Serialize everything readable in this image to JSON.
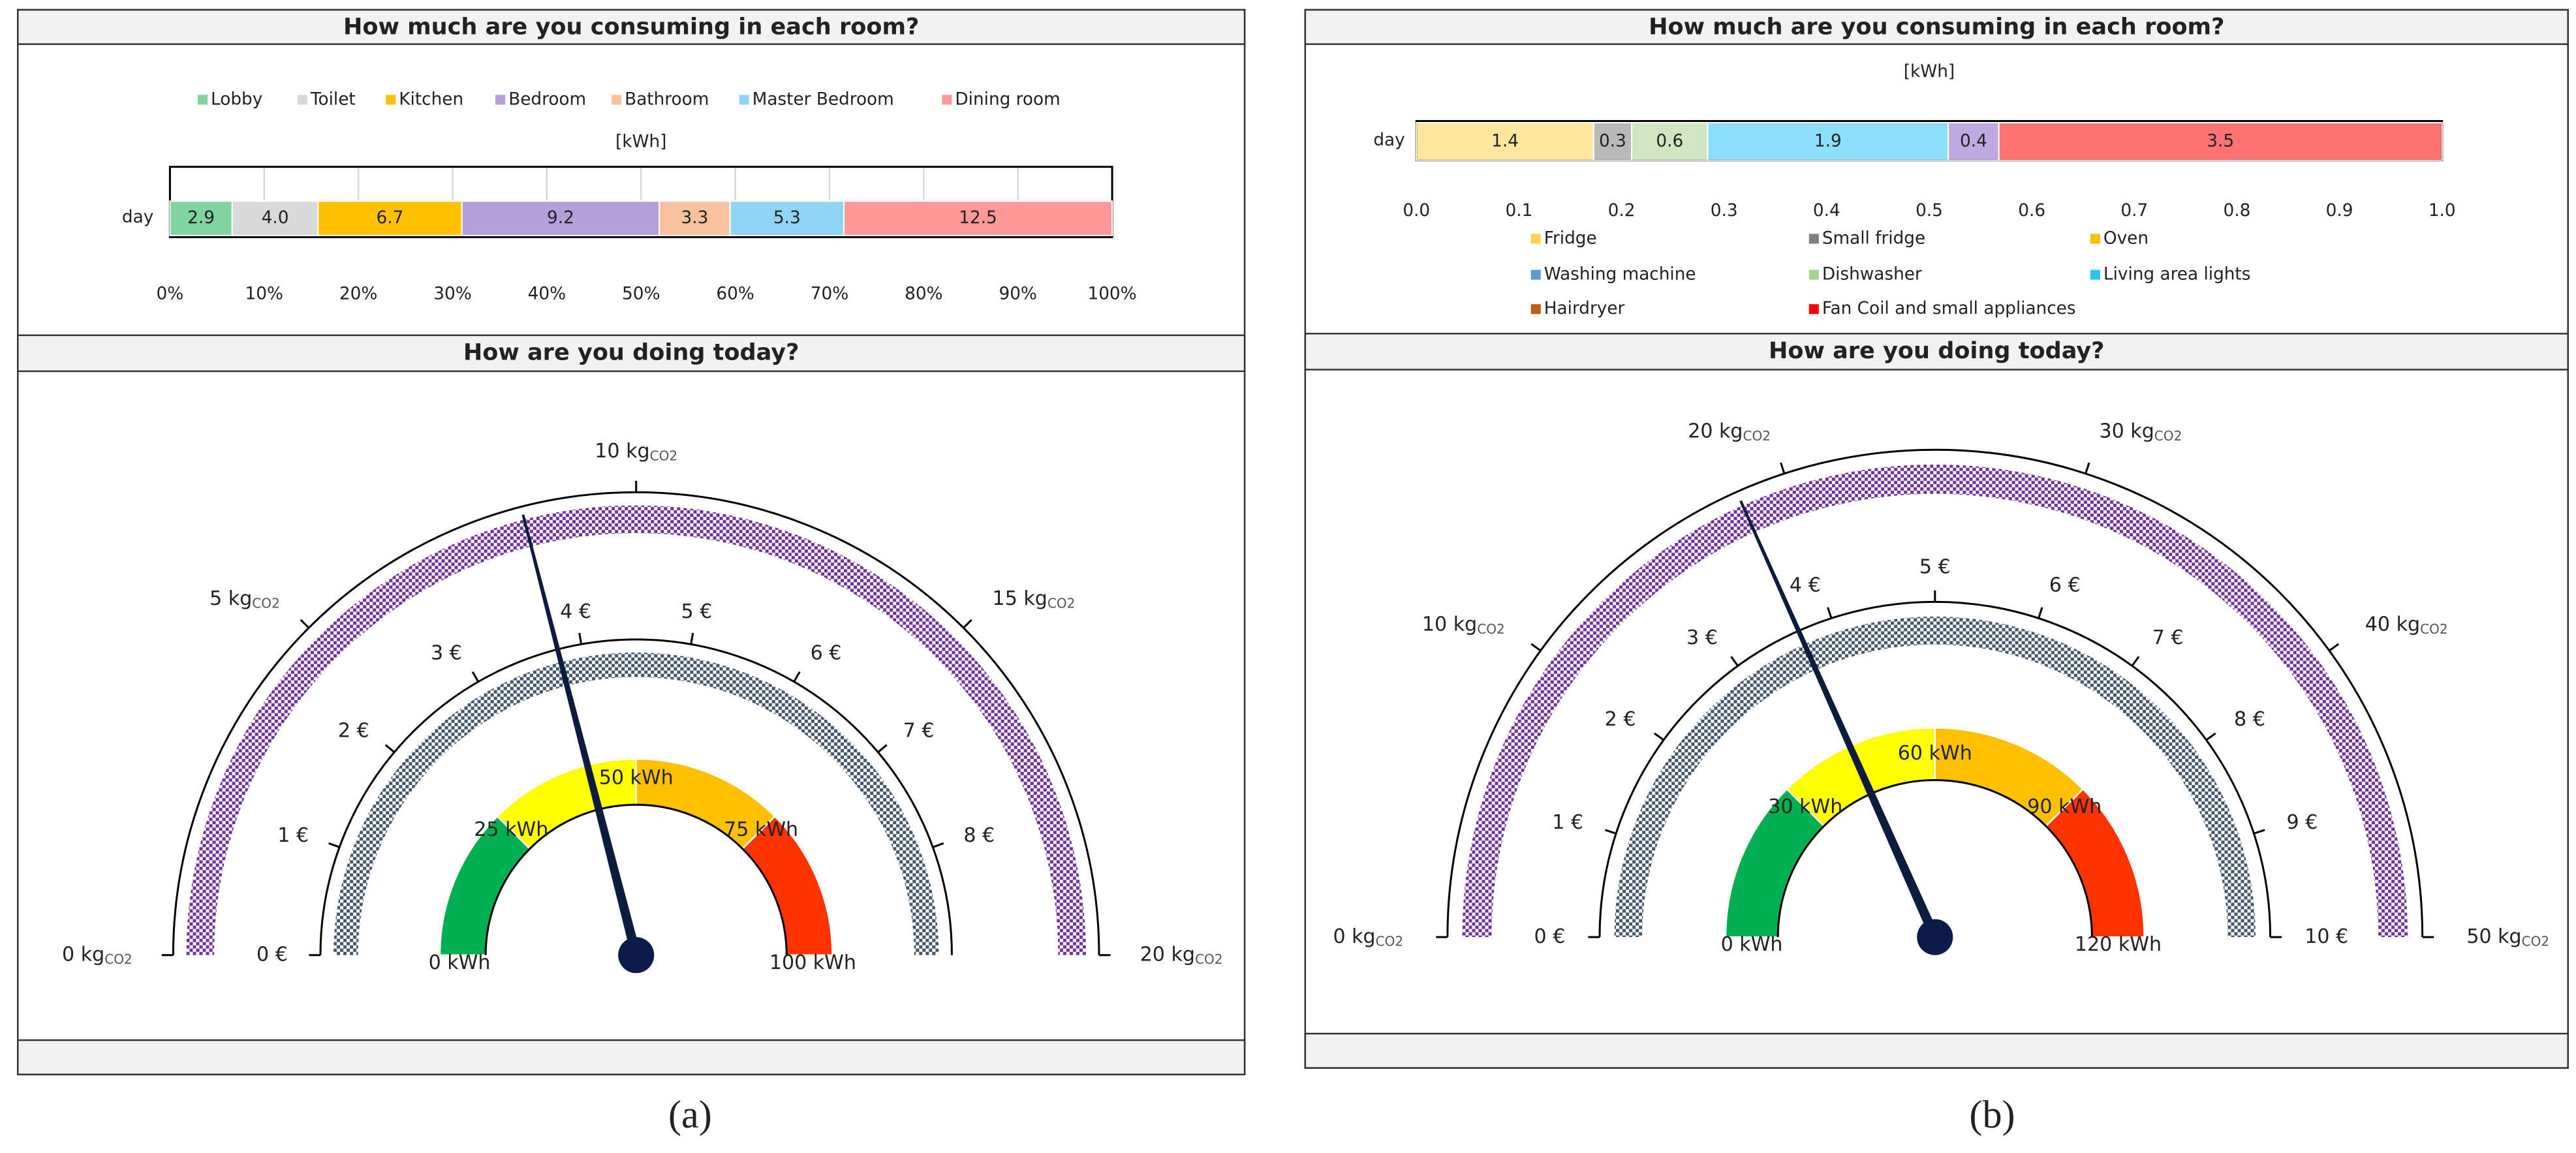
{
  "chart_data": [
    {
      "type": "bar",
      "stacked": true,
      "normalized": true,
      "title": "How much are you consuming in each room?",
      "axis_label": "[kWh]",
      "categories": [
        "day"
      ],
      "series": [
        {
          "name": "Lobby",
          "color": "#7fd4a0",
          "values": [
            2.9
          ]
        },
        {
          "name": "Toilet",
          "color": "#d9d9d9",
          "values": [
            4.0
          ],
          "value_labels": [
            "4.0"
          ]
        },
        {
          "name": "Kitchen",
          "color": "#ffc000",
          "values": [
            6.7
          ]
        },
        {
          "name": "Bedroom",
          "color": "#b59fd9",
          "values": [
            9.2
          ]
        },
        {
          "name": "Bathroom",
          "color": "#f8c29d",
          "values": [
            3.3
          ]
        },
        {
          "name": "Master Bedroom",
          "color": "#8fd4f5",
          "values": [
            5.3
          ]
        },
        {
          "name": "Dining room",
          "color": "#ff9999",
          "values": [
            12.5
          ]
        }
      ],
      "xlim": [
        0,
        100
      ],
      "xticks": [
        {
          "value": 0,
          "label": "0%"
        },
        {
          "value": 10,
          "label": "10%"
        },
        {
          "value": 20,
          "label": "20%"
        },
        {
          "value": 30,
          "label": "30%"
        },
        {
          "value": 40,
          "label": "40%"
        },
        {
          "value": 50,
          "label": "50%"
        },
        {
          "value": 60,
          "label": "60%"
        },
        {
          "value": 70,
          "label": "70%"
        },
        {
          "value": 80,
          "label": "80%"
        },
        {
          "value": 90,
          "label": "90%"
        },
        {
          "value": 100,
          "label": "100%"
        }
      ],
      "grid": true,
      "legend": "top"
    },
    {
      "type": "gauge",
      "title": "How are you doing today?",
      "value": 42,
      "kwhlim": [
        0,
        100
      ],
      "kwhticks": [
        {
          "value": 0,
          "label": "0 kWh"
        },
        {
          "value": 25,
          "label": "25 kWh"
        },
        {
          "value": 50,
          "label": "50 kWh"
        },
        {
          "value": 75,
          "label": "75 kWh"
        },
        {
          "value": 100,
          "label": "100 kWh"
        }
      ],
      "zone_colors": [
        "#00b050",
        "#ffff00",
        "#ffc000",
        "#ff3300"
      ],
      "eurolim": [
        0,
        9
      ],
      "euroticks": [
        {
          "value": 0,
          "label": "0 €"
        },
        {
          "value": 1,
          "label": "1 €"
        },
        {
          "value": 2,
          "label": "2 €"
        },
        {
          "value": 3,
          "label": "3 €"
        },
        {
          "value": 4,
          "label": "4 €"
        },
        {
          "value": 5,
          "label": "5 €"
        },
        {
          "value": 6,
          "label": "6 €"
        },
        {
          "value": 7,
          "label": "7 €"
        },
        {
          "value": 8,
          "label": "8 €"
        }
      ],
      "co2lim": [
        0,
        20
      ],
      "co2ticks": [
        {
          "value": 0,
          "label": "0 kg",
          "sub": "CO2"
        },
        {
          "value": 5,
          "label": "5 kg",
          "sub": "CO2"
        },
        {
          "value": 10,
          "label": "10 kg",
          "sub": "CO2"
        },
        {
          "value": 15,
          "label": "15 kg",
          "sub": "CO2"
        },
        {
          "value": 20,
          "label": "20 kg",
          "sub": "CO2"
        }
      ]
    },
    {
      "type": "bar",
      "stacked": true,
      "normalized": true,
      "title": "How much are you consuming in each room?",
      "axis_label": "[kWh]",
      "categories": [
        "day"
      ],
      "bar_opacity": 0.55,
      "series": [
        {
          "name": "Fridge",
          "color": "#ffd34d",
          "values": [
            1.4
          ]
        },
        {
          "name": "Small fridge",
          "color": "#7f7f7f",
          "values": [
            0.3
          ]
        },
        {
          "name": "Oven",
          "color": "#ffc000",
          "values": [
            null
          ]
        },
        {
          "name": "Washing machine",
          "color": "#5b9bd5",
          "values": [
            null
          ]
        },
        {
          "name": "Dishwasher",
          "color": "#a9d18e",
          "values": [
            0.6
          ]
        },
        {
          "name": "Living area lights",
          "color": "#2ec4f2",
          "values": [
            1.9
          ]
        },
        {
          "name": "Hairdryer",
          "color": "#c55a11",
          "values": [
            null
          ]
        },
        {
          "color": "#8a63c8",
          "values": [
            0.4
          ]
        },
        {
          "name": "Fan Coil and small appliances",
          "color": "#ff0000",
          "values": [
            3.5
          ]
        }
      ],
      "xlim": [
        0,
        1
      ],
      "xticks": [
        {
          "value": 0,
          "label": "0.0"
        },
        0.1,
        0.2,
        0.3,
        0.4,
        0.5,
        0.6,
        0.7,
        0.8,
        0.9,
        {
          "value": 1,
          "label": "1.0"
        }
      ],
      "grid": false,
      "legend": "bottom"
    },
    {
      "type": "gauge",
      "title": "How are you doing today?",
      "value": 44,
      "kwhlim": [
        0,
        120
      ],
      "kwhticks": [
        {
          "value": 0,
          "label": "0 kWh"
        },
        {
          "value": 30,
          "label": "30 kWh"
        },
        {
          "value": 60,
          "label": "60 kWh"
        },
        {
          "value": 90,
          "label": "90 kWh"
        },
        {
          "value": 120,
          "label": "120 kWh"
        }
      ],
      "zone_colors": [
        "#00b050",
        "#ffff00",
        "#ffc000",
        "#ff3300"
      ],
      "eurolim": [
        0,
        10
      ],
      "euroticks": [
        {
          "value": 0,
          "label": "0 €"
        },
        {
          "value": 1,
          "label": "1 €"
        },
        {
          "value": 2,
          "label": "2 €"
        },
        {
          "value": 3,
          "label": "3 €"
        },
        {
          "value": 4,
          "label": "4 €"
        },
        {
          "value": 5,
          "label": "5 €"
        },
        {
          "value": 6,
          "label": "6 €"
        },
        {
          "value": 7,
          "label": "7 €"
        },
        {
          "value": 8,
          "label": "8 €"
        },
        {
          "value": 9,
          "label": "9 €"
        },
        {
          "value": 10,
          "label": "10 €"
        }
      ],
      "co2lim": [
        0,
        50
      ],
      "co2ticks": [
        {
          "value": 0,
          "label": "0 kg",
          "sub": "CO2"
        },
        {
          "value": 10,
          "label": "10 kg",
          "sub": "CO2"
        },
        {
          "value": 20,
          "label": "20 kg",
          "sub": "CO2"
        },
        {
          "value": 30,
          "label": "30 kg",
          "sub": "CO2"
        },
        {
          "value": 40,
          "label": "40 kg",
          "sub": "CO2"
        },
        {
          "value": 50,
          "label": "50 kg",
          "sub": "CO2"
        }
      ]
    }
  ],
  "captions": [
    "(a)",
    "(b)"
  ]
}
